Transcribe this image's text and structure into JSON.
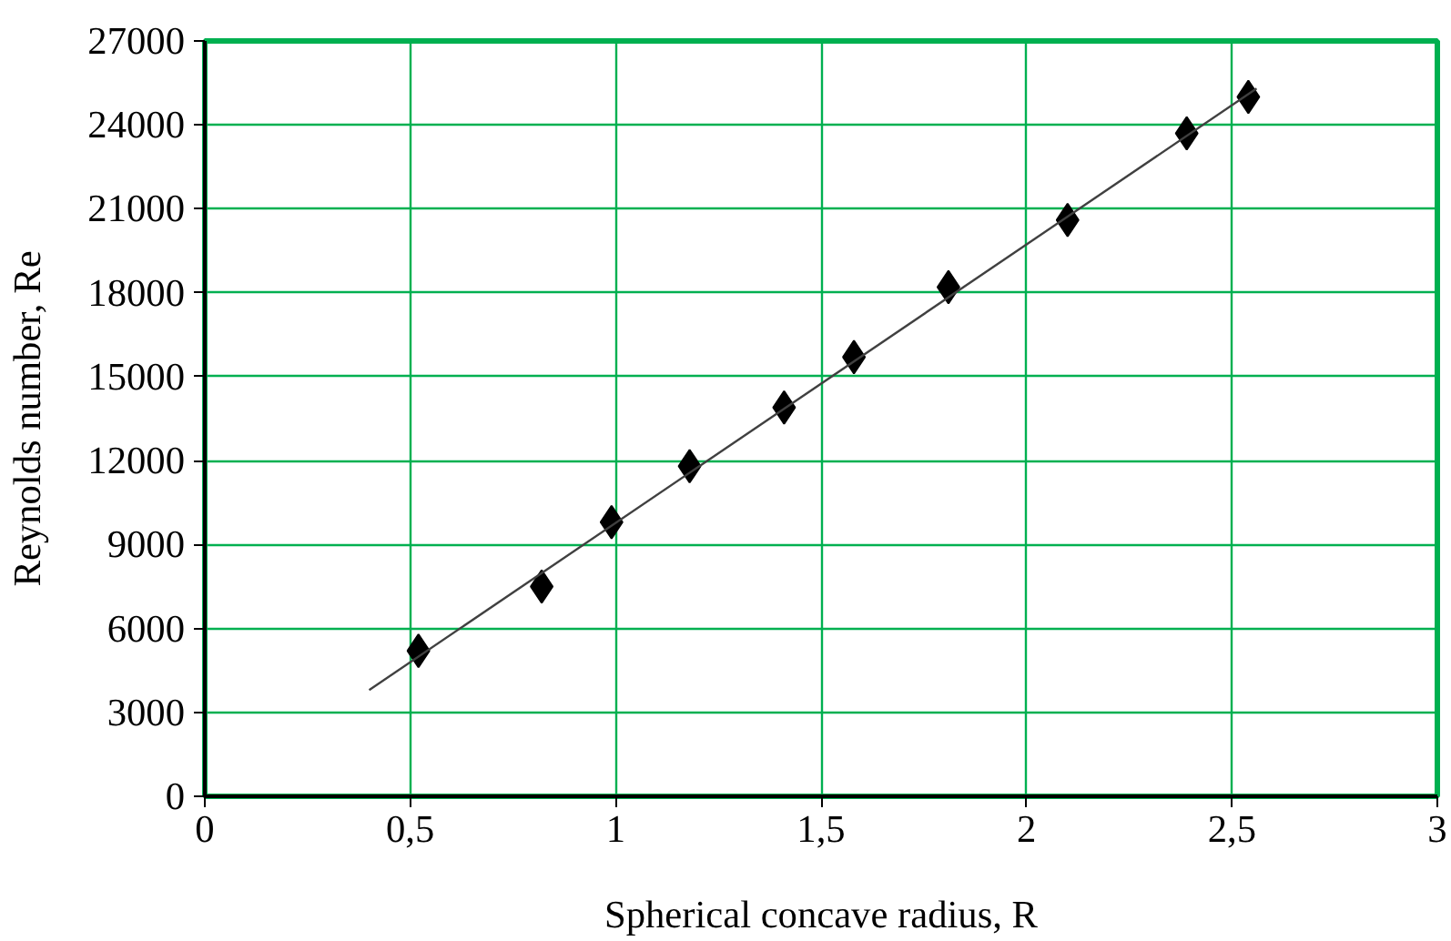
{
  "chart_data": {
    "type": "scatter",
    "xlabel": "Spherical concave radius, R",
    "ylabel": "Reynolds number, Re",
    "x": [
      0.52,
      0.82,
      0.99,
      1.18,
      1.41,
      1.58,
      1.81,
      2.1,
      2.39,
      2.54
    ],
    "series": [
      {
        "color": "#000000",
        "marker": "diamond",
        "values": [
          5200,
          7500,
          9800,
          11800,
          13900,
          15700,
          18200,
          20600,
          23700,
          25000
        ]
      },
      {
        "type": "line",
        "color": "#404040",
        "marker": "none",
        "x": [
          0.4,
          2.56
        ],
        "values": [
          3800,
          25300
        ]
      }
    ],
    "xlim": [
      0,
      3
    ],
    "ylim": [
      0,
      27000
    ],
    "xticks": [
      0,
      {
        "value": 0.5,
        "label": "0,5"
      },
      1,
      {
        "value": 1.5,
        "label": "1,5"
      },
      2,
      {
        "value": 2.5,
        "label": "2,5"
      },
      3
    ],
    "yticks": [
      0,
      3000,
      6000,
      9000,
      12000,
      15000,
      18000,
      21000,
      24000,
      27000
    ],
    "grid": true
  }
}
